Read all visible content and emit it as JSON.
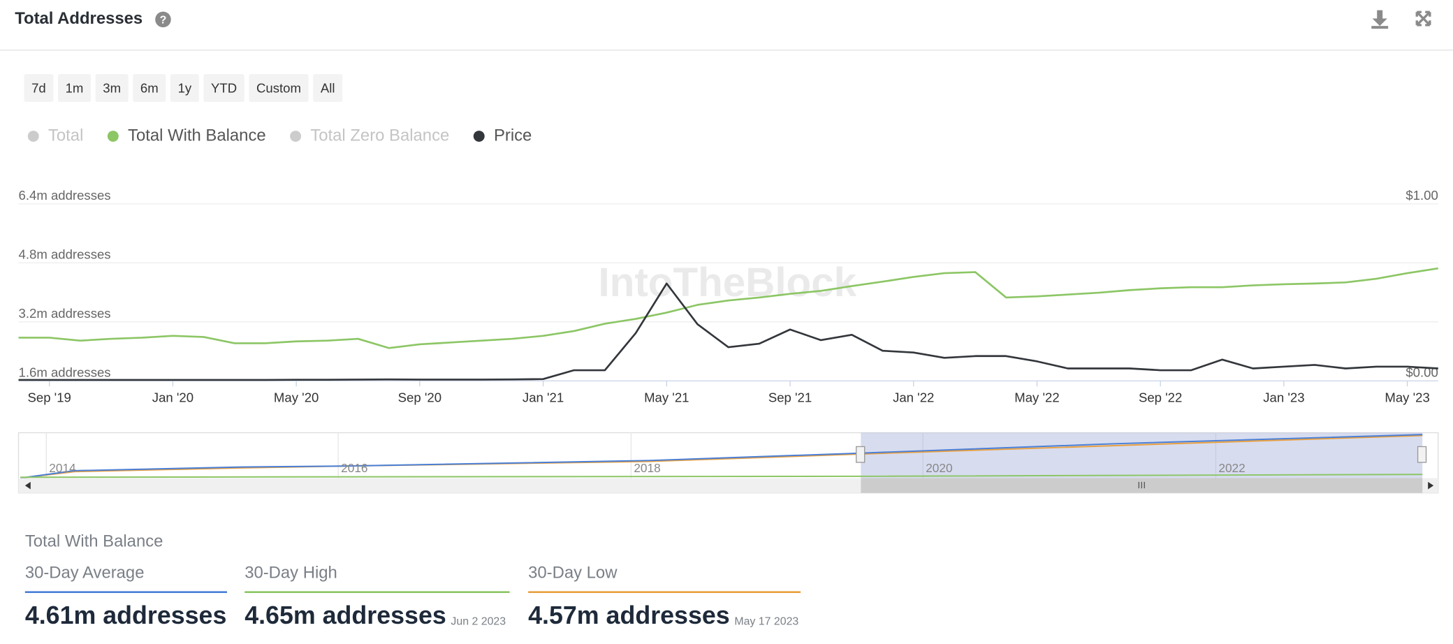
{
  "header": {
    "title": "Total Addresses"
  },
  "range_buttons": [
    "7d",
    "1m",
    "3m",
    "6m",
    "1y",
    "YTD",
    "Custom",
    "All"
  ],
  "chart_data": {
    "type": "line",
    "watermark": "IntoTheBlock",
    "x": [
      "2019-08",
      "2019-09",
      "2019-10",
      "2019-11",
      "2019-12",
      "2020-01",
      "2020-02",
      "2020-03",
      "2020-04",
      "2020-05",
      "2020-06",
      "2020-07",
      "2020-08",
      "2020-09",
      "2020-10",
      "2020-11",
      "2020-12",
      "2021-01",
      "2021-02",
      "2021-03",
      "2021-04",
      "2021-05",
      "2021-06",
      "2021-07",
      "2021-08",
      "2021-09",
      "2021-10",
      "2021-11",
      "2021-12",
      "2022-01",
      "2022-02",
      "2022-03",
      "2022-04",
      "2022-05",
      "2022-06",
      "2022-07",
      "2022-08",
      "2022-09",
      "2022-10",
      "2022-11",
      "2022-12",
      "2023-01",
      "2023-02",
      "2023-03",
      "2023-04",
      "2023-05",
      "2023-06"
    ],
    "xlim": [
      "2019-08",
      "2023-06"
    ],
    "xticks": [
      {
        "value": "2019-09",
        "label": "Sep '19"
      },
      {
        "value": "2020-01",
        "label": "Jan '20"
      },
      {
        "value": "2020-05",
        "label": "May '20"
      },
      {
        "value": "2020-09",
        "label": "Sep '20"
      },
      {
        "value": "2021-01",
        "label": "Jan '21"
      },
      {
        "value": "2021-05",
        "label": "May '21"
      },
      {
        "value": "2021-09",
        "label": "Sep '21"
      },
      {
        "value": "2022-01",
        "label": "Jan '22"
      },
      {
        "value": "2022-05",
        "label": "May '22"
      },
      {
        "value": "2022-09",
        "label": "Sep '22"
      },
      {
        "value": "2023-01",
        "label": "Jan '23"
      },
      {
        "value": "2023-05",
        "label": "May '23"
      }
    ],
    "ylim": [
      1.6,
      6.4
    ],
    "yticks": [
      {
        "value": 1.6,
        "label": "1.6m addresses"
      },
      {
        "value": 3.2,
        "label": "3.2m addresses"
      },
      {
        "value": 4.8,
        "label": "4.8m addresses"
      },
      {
        "value": 6.4,
        "label": "6.4m addresses"
      }
    ],
    "y2lim": [
      0,
      1
    ],
    "y2ticks": [
      {
        "value": 0,
        "label": "$0.00"
      },
      {
        "value": 1,
        "label": "$1.00"
      }
    ],
    "grid": true,
    "series": [
      {
        "name": "Total",
        "color": "#cccccc",
        "hidden": true
      },
      {
        "name": "Total With Balance",
        "color": "#8cc665",
        "values": [
          2.77,
          2.77,
          2.69,
          2.74,
          2.77,
          2.82,
          2.79,
          2.62,
          2.62,
          2.67,
          2.69,
          2.74,
          2.49,
          2.59,
          2.64,
          2.69,
          2.74,
          2.82,
          2.95,
          3.15,
          3.28,
          3.45,
          3.66,
          3.78,
          3.86,
          3.96,
          4.04,
          4.17,
          4.29,
          4.42,
          4.52,
          4.55,
          3.86,
          3.89,
          3.94,
          3.99,
          4.06,
          4.11,
          4.14,
          4.14,
          4.19,
          4.22,
          4.24,
          4.27,
          4.37,
          4.52,
          4.65
        ]
      },
      {
        "name": "Total Zero Balance",
        "color": "#cccccc",
        "hidden": true
      },
      {
        "name": "Price",
        "color": "#33363b",
        "axis": "y2",
        "values": [
          0.005,
          0.005,
          0.005,
          0.005,
          0.005,
          0.005,
          0.005,
          0.005,
          0.005,
          0.006,
          0.006,
          0.007,
          0.008,
          0.007,
          0.007,
          0.007,
          0.008,
          0.01,
          0.06,
          0.06,
          0.27,
          0.55,
          0.32,
          0.19,
          0.21,
          0.29,
          0.23,
          0.26,
          0.17,
          0.16,
          0.13,
          0.14,
          0.14,
          0.11,
          0.07,
          0.07,
          0.07,
          0.06,
          0.06,
          0.12,
          0.07,
          0.08,
          0.09,
          0.07,
          0.08,
          0.08,
          0.07
        ]
      }
    ]
  },
  "navigator": {
    "labels": [
      "2014",
      "2016",
      "2018",
      "2020",
      "2022"
    ]
  },
  "stats": {
    "title": "Total With Balance",
    "cards": [
      {
        "label": "30-Day Average",
        "value": "4.61m addresses",
        "color": "#4a7fd6"
      },
      {
        "label": "30-Day High",
        "value": "4.65m addresses",
        "date": "Jun 2 2023",
        "color": "#8cc665"
      },
      {
        "label": "30-Day Low",
        "value": "4.57m addresses",
        "date": "May 17 2023",
        "color": "#e8a040"
      }
    ]
  }
}
